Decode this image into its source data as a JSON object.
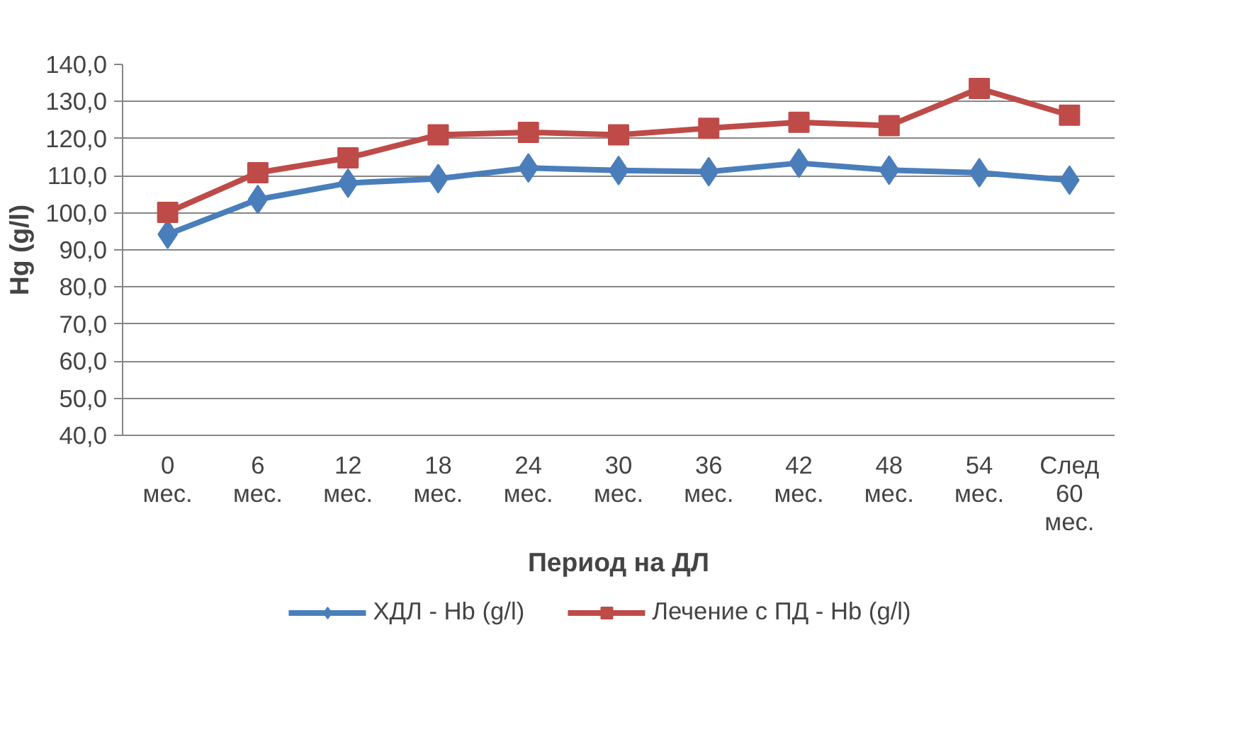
{
  "chart_data": {
    "type": "line",
    "xlabel": "Период на ДЛ",
    "ylabel": "Hg (g/l)",
    "categories": [
      "0\nмес.",
      "6\nмес.",
      "12\nмес.",
      "18\nмес.",
      "24\nмес.",
      "30\nмес.",
      "36\nмес.",
      "42\nмес.",
      "48\nмес.",
      "54\nмес.",
      "След\n60\nмес."
    ],
    "series": [
      {
        "name": "ХДЛ - Hb (g/l)",
        "color": "#4a7ebb",
        "marker": "diamond",
        "values": [
          94.2,
          103.6,
          108.0,
          109.2,
          112.1,
          111.4,
          111.1,
          113.4,
          111.5,
          110.8,
          108.8
        ]
      },
      {
        "name": "Лечение с ПД - Hb (g/l)",
        "color": "#be4b48",
        "marker": "square",
        "values": [
          100.1,
          110.8,
          114.8,
          121.0,
          121.7,
          121.0,
          122.8,
          124.4,
          123.5,
          133.5,
          126.3
        ]
      }
    ],
    "ylim": [
      40,
      140
    ],
    "yticks": [
      {
        "value": 40,
        "label": "40,0"
      },
      {
        "value": 50,
        "label": "50,0"
      },
      {
        "value": 60,
        "label": "60,0"
      },
      {
        "value": 70,
        "label": "70,0"
      },
      {
        "value": 80,
        "label": "80,0"
      },
      {
        "value": 90,
        "label": "90,0"
      },
      {
        "value": 100,
        "label": "100,0"
      },
      {
        "value": 110,
        "label": "110,0"
      },
      {
        "value": 120,
        "label": "120,0"
      },
      {
        "value": 130,
        "label": "130,0"
      },
      {
        "value": 140,
        "label": "140,0"
      }
    ],
    "grid": "y",
    "legend": "bottom",
    "line_style": "solid"
  }
}
